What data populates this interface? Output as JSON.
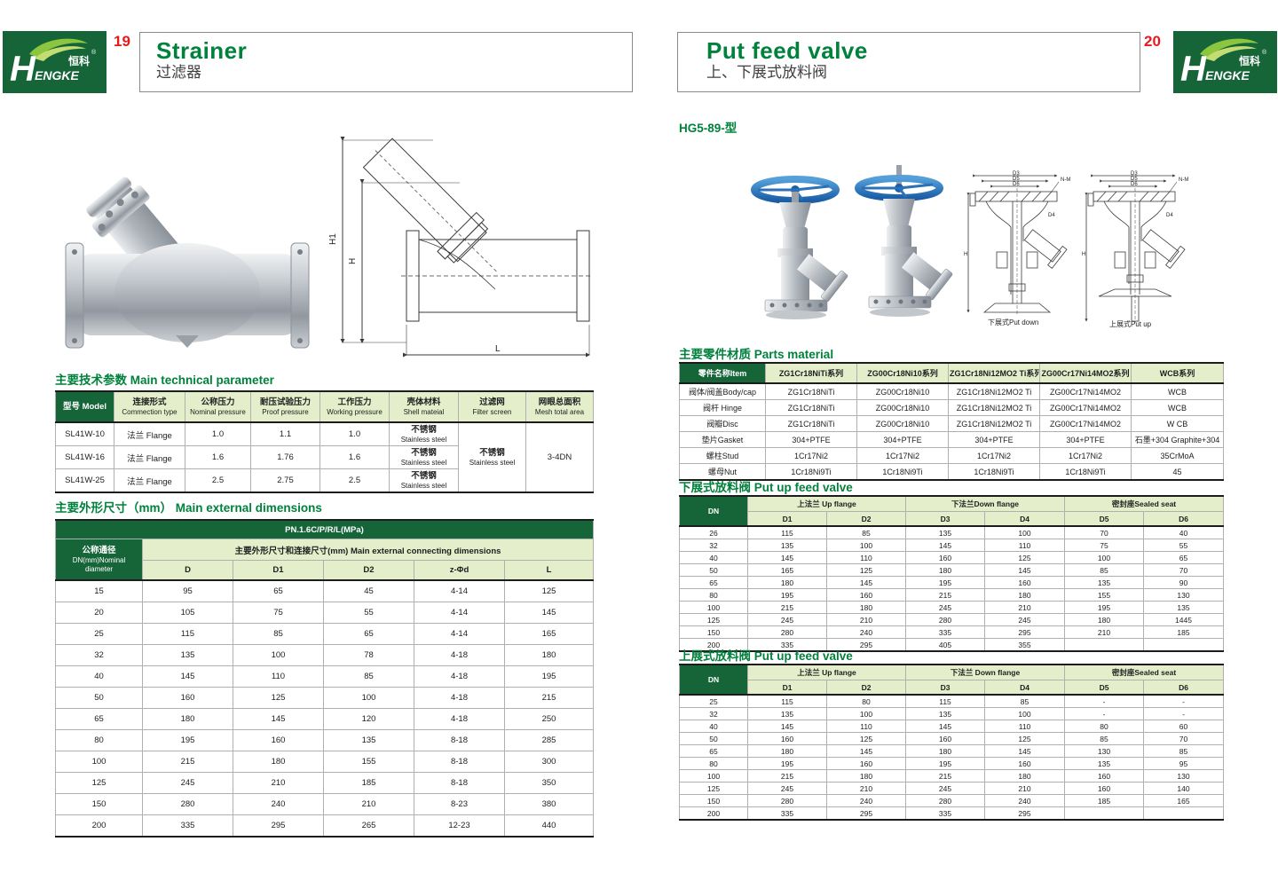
{
  "colors": {
    "brand_green": "#166539",
    "light_green": "#e4eecb",
    "title_green": "#00813c",
    "accent_red": "#e8191d",
    "handwheel_blue": "#2a72b5"
  },
  "logo": {
    "h": "H",
    "engke": "ENGKE",
    "cn": "恒科",
    "reg": "®"
  },
  "header": {
    "left_page_num": "19",
    "right_page_num": "20",
    "left_title_en": "Strainer",
    "left_title_cn": "过滤器",
    "right_title_en": "Put feed valve",
    "right_title_cn": "上、下展式放料阀"
  },
  "left": {
    "drawing_labels": {
      "h1": "H1",
      "h": "H",
      "l": "L"
    },
    "tech": {
      "title_cn": "主要技术参数",
      "title_en": "Main technical parameter",
      "headers": [
        {
          "cn": "型号 Model",
          "en": ""
        },
        {
          "cn": "连接形式",
          "en": "Commection type"
        },
        {
          "cn": "公称压力",
          "en": "Nominal pressure"
        },
        {
          "cn": "耐压试验压力",
          "en": "Proof pressure"
        },
        {
          "cn": "工作压力",
          "en": "Working pressure"
        },
        {
          "cn": "壳体材料",
          "en": "Shell mateial"
        },
        {
          "cn": "过滤网",
          "en": "Filter screen"
        },
        {
          "cn": "网眼总面积",
          "en": "Mesh total area"
        }
      ],
      "rows": [
        {
          "model": "SL41W-10",
          "conn": "法兰 Flange",
          "nominal": "1.0",
          "proof": "1.1",
          "working": "1.0"
        },
        {
          "model": "SL41W-16",
          "conn": "法兰 Flange",
          "nominal": "1.6",
          "proof": "1.76",
          "working": "1.6"
        },
        {
          "model": "SL41W-25",
          "conn": "法兰 Flange",
          "nominal": "2.5",
          "proof": "2.75",
          "working": "2.5"
        }
      ],
      "shell_cn": "不锈钢",
      "shell_en": "Stainless steel",
      "filter_cn": "不锈钢",
      "filter_en": "Stainless steel",
      "mesh": "3-4DN"
    },
    "dims": {
      "title_cn": "主要外形尺寸（mm）",
      "title_en": "Main external dimensions",
      "pn": "PN.1.6C/P/R/L(MPa)",
      "dn_cn": "公称通径",
      "dn_en1": "DN(mm)Nominal",
      "dn_en2": "diameter",
      "group": "主要外形尺寸和连接尺寸(mm) Main external connecting dimensions",
      "cols": [
        "D",
        "D1",
        "D2",
        "z-Φd",
        "L"
      ],
      "rows": [
        [
          "15",
          "95",
          "65",
          "45",
          "4-14",
          "125"
        ],
        [
          "20",
          "105",
          "75",
          "55",
          "4-14",
          "145"
        ],
        [
          "25",
          "115",
          "85",
          "65",
          "4-14",
          "165"
        ],
        [
          "32",
          "135",
          "100",
          "78",
          "4-18",
          "180"
        ],
        [
          "40",
          "145",
          "110",
          "85",
          "4-18",
          "195"
        ],
        [
          "50",
          "160",
          "125",
          "100",
          "4-18",
          "215"
        ],
        [
          "65",
          "180",
          "145",
          "120",
          "4-18",
          "250"
        ],
        [
          "80",
          "195",
          "160",
          "135",
          "8-18",
          "285"
        ],
        [
          "100",
          "215",
          "180",
          "155",
          "8-18",
          "300"
        ],
        [
          "125",
          "245",
          "210",
          "185",
          "8-18",
          "350"
        ],
        [
          "150",
          "280",
          "240",
          "210",
          "8-23",
          "380"
        ],
        [
          "200",
          "335",
          "295",
          "265",
          "12-23",
          "440"
        ]
      ]
    }
  },
  "right": {
    "model_label": "HG5-89-型",
    "captions": {
      "down": "下展式Put down",
      "up": "上展式Put up"
    },
    "drawing_labels": {
      "d3": "D3",
      "d5": "D5",
      "d6": "D6",
      "d4": "D4",
      "nm": "N-M",
      "h": "H"
    },
    "parts": {
      "title_cn": "主要零件材质",
      "title_en": "Parts material",
      "headers": [
        "零件名称Item",
        "ZG1Cr18NiTi系列",
        "ZG00Cr18Ni10系列",
        "ZG1Cr18Ni12MO2 Ti系列",
        "ZG00Cr17Ni14MO2系列",
        "WCB系列"
      ],
      "rows": [
        [
          "阀体/阀盖Body/cap",
          "ZG1Cr18NiTi",
          "ZG00Cr18Ni10",
          "ZG1Cr18Ni12MO2 Ti",
          "ZG00Cr17Ni14MO2",
          "WCB"
        ],
        [
          "阀杆 Hinge",
          "ZG1Cr18NiTi",
          "ZG00Cr18Ni10",
          "ZG1Cr18Ni12MO2 Ti",
          "ZG00Cr17Ni14MO2",
          "WCB"
        ],
        [
          "阀瓣Disc",
          "ZG1Cr18NiTi",
          "ZG00Cr18Ni10",
          "ZG1Cr18Ni12MO2 Ti",
          "ZG00Cr17Ni14MO2",
          "W CB"
        ],
        [
          "垫片Gasket",
          "304+PTFE",
          "304+PTFE",
          "304+PTFE",
          "304+PTFE",
          "石墨+304 Graphite+304"
        ],
        [
          "螺柱Stud",
          "1Cr17Ni2",
          "1Cr17Ni2",
          "1Cr17Ni2",
          "1Cr17Ni2",
          "35CrMoA"
        ],
        [
          "螺母Nut",
          "1Cr18Ni9Ti",
          "1Cr18Ni9Ti",
          "1Cr18Ni9Ti",
          "1Cr18Ni9Ti",
          "45"
        ]
      ]
    },
    "put_down": {
      "title_cn": "下展式放料阀",
      "title_en": "Put up feed valve",
      "dn": "DN",
      "g1": "上法兰 Up flange",
      "g2": "下法兰Down flange",
      "g3": "密封座Sealed seat",
      "cols": [
        "D1",
        "D2",
        "D3",
        "D4",
        "D5",
        "D6"
      ],
      "rows": [
        [
          "26",
          "115",
          "85",
          "135",
          "100",
          "70",
          "40"
        ],
        [
          "32",
          "135",
          "100",
          "145",
          "110",
          "75",
          "55"
        ],
        [
          "40",
          "145",
          "110",
          "160",
          "125",
          "100",
          "65"
        ],
        [
          "50",
          "165",
          "125",
          "180",
          "145",
          "85",
          "70"
        ],
        [
          "65",
          "180",
          "145",
          "195",
          "160",
          "135",
          "90"
        ],
        [
          "80",
          "195",
          "160",
          "215",
          "180",
          "155",
          "130"
        ],
        [
          "100",
          "215",
          "180",
          "245",
          "210",
          "195",
          "135"
        ],
        [
          "125",
          "245",
          "210",
          "280",
          "245",
          "180",
          "1445"
        ],
        [
          "150",
          "280",
          "240",
          "335",
          "295",
          "210",
          "185"
        ],
        [
          "200",
          "335",
          "295",
          "405",
          "355",
          "",
          ""
        ]
      ]
    },
    "put_up": {
      "title_cn": "上展式放料阀",
      "title_en": "Put up feed valve",
      "dn": "DN",
      "g1": "上法兰 Up flange",
      "g2": "下法兰 Down flange",
      "g3": "密封座Sealed seat",
      "cols": [
        "D1",
        "D2",
        "D3",
        "D4",
        "D5",
        "D6"
      ],
      "rows": [
        [
          "25",
          "115",
          "80",
          "115",
          "85",
          "-",
          "-"
        ],
        [
          "32",
          "135",
          "100",
          "135",
          "100",
          "-",
          "-"
        ],
        [
          "40",
          "145",
          "110",
          "145",
          "110",
          "80",
          "60"
        ],
        [
          "50",
          "160",
          "125",
          "160",
          "125",
          "85",
          "70"
        ],
        [
          "65",
          "180",
          "145",
          "180",
          "145",
          "130",
          "85"
        ],
        [
          "80",
          "195",
          "160",
          "195",
          "160",
          "135",
          "95"
        ],
        [
          "100",
          "215",
          "180",
          "215",
          "180",
          "160",
          "130"
        ],
        [
          "125",
          "245",
          "210",
          "245",
          "210",
          "160",
          "140"
        ],
        [
          "150",
          "280",
          "240",
          "280",
          "240",
          "185",
          "165"
        ],
        [
          "200",
          "335",
          "295",
          "335",
          "295",
          "",
          ""
        ]
      ]
    }
  }
}
